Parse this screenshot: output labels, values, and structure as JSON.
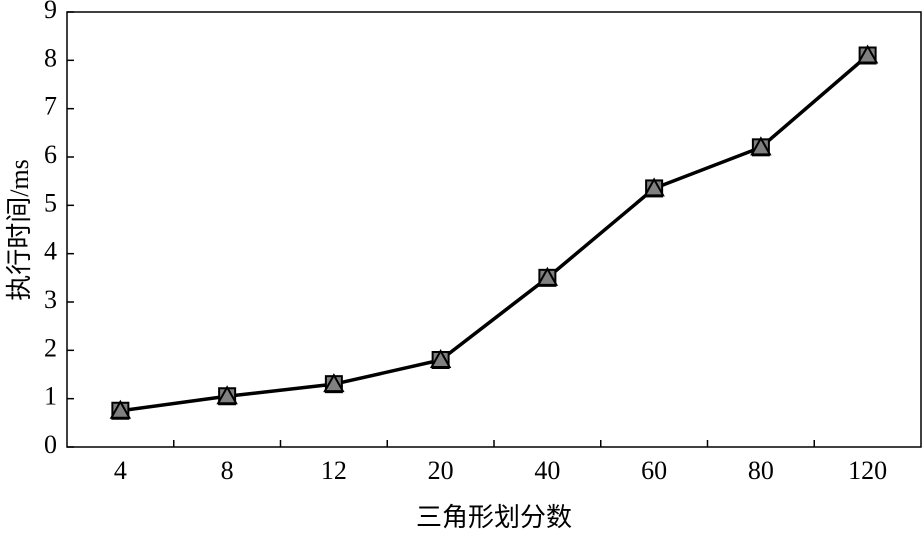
{
  "chart_data": {
    "type": "line",
    "x_label": "三角形划分数",
    "y_label": "执行时间/ms",
    "categories": [
      "4",
      "8",
      "12",
      "20",
      "40",
      "60",
      "80",
      "120"
    ],
    "values": [
      0.75,
      1.05,
      1.3,
      1.8,
      3.5,
      5.35,
      6.2,
      8.1
    ],
    "color": "#000000",
    "marker_color": "#808080",
    "ylim": [
      0,
      9
    ],
    "yticks": [
      0,
      1,
      2,
      3,
      4,
      5,
      6,
      7,
      8,
      9
    ],
    "grid": false
  }
}
